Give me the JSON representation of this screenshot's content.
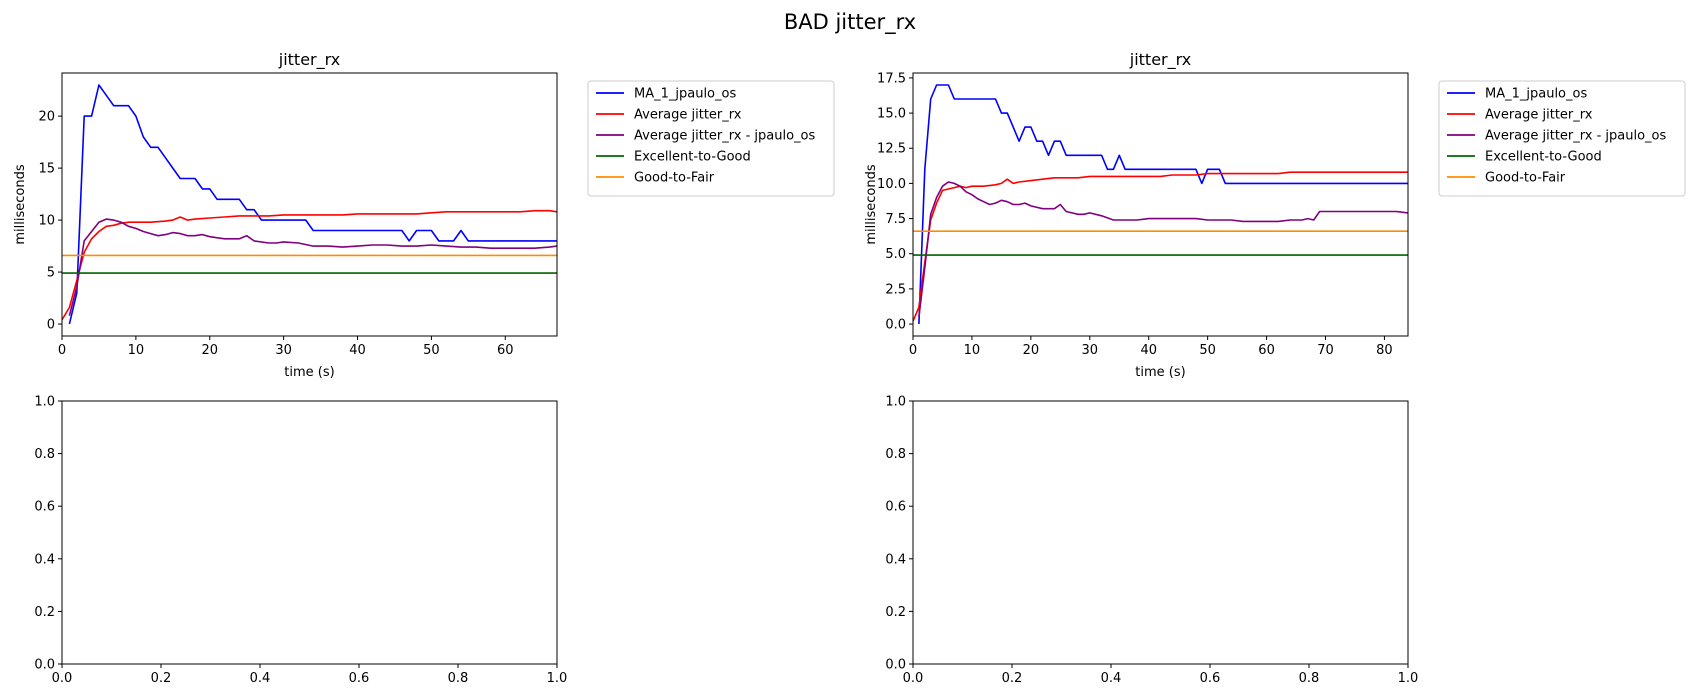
{
  "figure": {
    "suptitle": "BAD jitter_rx"
  },
  "chart_data": [
    {
      "type": "line",
      "title": "jitter_rx",
      "xlabel": "time (s)",
      "ylabel": "milliseconds",
      "xlim": [
        0,
        67
      ],
      "ylim": [
        -1.15,
        24.15
      ],
      "xticks": [
        0,
        10,
        20,
        30,
        40,
        50,
        60
      ],
      "yticks": [
        0,
        5,
        10,
        15,
        20
      ],
      "grid": false,
      "legend_position": "outside-right-top",
      "series": [
        {
          "name": "MA_1_jpaulo_os",
          "color": "#0000ff",
          "x": [
            1,
            2,
            3,
            4,
            5,
            6,
            7,
            8,
            9,
            10,
            11,
            12,
            13,
            14,
            15,
            16,
            17,
            18,
            19,
            20,
            21,
            22,
            23,
            24,
            25,
            26,
            27,
            28,
            29,
            30,
            31,
            32,
            33,
            34,
            35,
            36,
            37,
            38,
            39,
            40,
            41,
            42,
            43,
            44,
            45,
            46,
            47,
            48,
            49,
            50,
            51,
            52,
            53,
            54,
            55,
            56,
            57,
            58,
            59,
            60,
            61,
            62,
            63,
            64,
            65,
            66,
            67
          ],
          "y": [
            0,
            3,
            20,
            20,
            23,
            22,
            21,
            21,
            21,
            20,
            18,
            17,
            17,
            16,
            15,
            14,
            14,
            14,
            13,
            13,
            12,
            12,
            12,
            12,
            11,
            11,
            10,
            10,
            10,
            10,
            10,
            10,
            10,
            9,
            9,
            9,
            9,
            9,
            9,
            9,
            9,
            9,
            9,
            9,
            9,
            9,
            8,
            9,
            9,
            9,
            8,
            8,
            8,
            9,
            8,
            8,
            8,
            8,
            8,
            8,
            8,
            8,
            8,
            8,
            8,
            8,
            8
          ]
        },
        {
          "name": "Average jitter_rx",
          "color": "#ff0000",
          "x": [
            0,
            1,
            2,
            3,
            4,
            5,
            6,
            7,
            8,
            9,
            10,
            12,
            14,
            15,
            16,
            17,
            18,
            20,
            22,
            24,
            26,
            28,
            30,
            32,
            34,
            36,
            38,
            40,
            42,
            44,
            46,
            48,
            50,
            52,
            54,
            56,
            58,
            60,
            62,
            64,
            66,
            67
          ],
          "y": [
            0.4,
            1.6,
            4.2,
            6.9,
            8.2,
            8.9,
            9.4,
            9.5,
            9.7,
            9.8,
            9.8,
            9.8,
            9.9,
            10.0,
            10.3,
            10.0,
            10.1,
            10.2,
            10.3,
            10.4,
            10.4,
            10.4,
            10.5,
            10.5,
            10.5,
            10.5,
            10.5,
            10.6,
            10.6,
            10.6,
            10.6,
            10.6,
            10.7,
            10.8,
            10.8,
            10.8,
            10.8,
            10.8,
            10.8,
            10.9,
            10.9,
            10.8
          ]
        },
        {
          "name": "Average jitter_rx - jpaulo_os",
          "color": "#800080",
          "x": [
            1,
            2,
            3,
            4,
            5,
            6,
            7,
            8,
            9,
            10,
            11,
            12,
            13,
            14,
            15,
            16,
            17,
            18,
            19,
            20,
            22,
            24,
            25,
            26,
            28,
            29,
            30,
            32,
            34,
            36,
            38,
            40,
            42,
            44,
            46,
            48,
            50,
            52,
            54,
            56,
            58,
            60,
            62,
            64,
            66,
            67
          ],
          "y": [
            0.8,
            3.6,
            8.0,
            8.9,
            9.8,
            10.1,
            10.0,
            9.8,
            9.4,
            9.2,
            8.9,
            8.7,
            8.5,
            8.6,
            8.8,
            8.7,
            8.5,
            8.5,
            8.6,
            8.4,
            8.2,
            8.2,
            8.5,
            8.0,
            7.8,
            7.8,
            7.9,
            7.8,
            7.5,
            7.5,
            7.4,
            7.5,
            7.6,
            7.6,
            7.5,
            7.5,
            7.6,
            7.5,
            7.4,
            7.4,
            7.3,
            7.3,
            7.3,
            7.3,
            7.4,
            7.5
          ]
        },
        {
          "name": "Excellent-to-Good",
          "color": "#006400",
          "x": [
            0,
            67
          ],
          "y": [
            4.9,
            4.9
          ]
        },
        {
          "name": "Good-to-Fair",
          "color": "#ff8c00",
          "x": [
            0,
            67
          ],
          "y": [
            6.6,
            6.6
          ]
        }
      ]
    },
    {
      "type": "line",
      "title": "jitter_rx",
      "xlabel": "time (s)",
      "ylabel": "milliseconds",
      "xlim": [
        0,
        84
      ],
      "ylim": [
        -0.85,
        17.85
      ],
      "xticks": [
        0,
        10,
        20,
        30,
        40,
        50,
        60,
        70,
        80
      ],
      "yticks": [
        0.0,
        2.5,
        5.0,
        7.5,
        10.0,
        12.5,
        15.0,
        17.5
      ],
      "ytick_labels": [
        "0.0",
        "2.5",
        "5.0",
        "7.5",
        "10.0",
        "12.5",
        "15.0",
        "17.5"
      ],
      "grid": false,
      "legend_position": "outside-right-top",
      "series": [
        {
          "name": "MA_1_jpaulo_os",
          "color": "#0000ff",
          "x": [
            1,
            2,
            3,
            4,
            5,
            6,
            7,
            8,
            9,
            10,
            11,
            12,
            13,
            14,
            15,
            16,
            17,
            18,
            19,
            20,
            21,
            22,
            23,
            24,
            25,
            26,
            27,
            28,
            29,
            30,
            31,
            32,
            33,
            34,
            35,
            36,
            37,
            38,
            39,
            40,
            41,
            42,
            43,
            44,
            45,
            46,
            47,
            48,
            49,
            50,
            51,
            52,
            53,
            54,
            55,
            56,
            57,
            58,
            59,
            60,
            61,
            62,
            63,
            64,
            65,
            66,
            67,
            68,
            69,
            70,
            71,
            72,
            73,
            74,
            75,
            76,
            77,
            78,
            79,
            80,
            81,
            82,
            83,
            84
          ],
          "y": [
            0,
            11,
            16,
            17,
            17,
            17,
            16,
            16,
            16,
            16,
            16,
            16,
            16,
            16,
            15,
            15,
            14,
            13,
            14,
            14,
            13,
            13,
            12,
            13,
            13,
            12,
            12,
            12,
            12,
            12,
            12,
            12,
            11,
            11,
            12,
            11,
            11,
            11,
            11,
            11,
            11,
            11,
            11,
            11,
            11,
            11,
            11,
            11,
            10,
            11,
            11,
            11,
            10,
            10,
            10,
            10,
            10,
            10,
            10,
            10,
            10,
            10,
            10,
            10,
            10,
            10,
            10,
            10,
            10,
            10,
            10,
            10,
            10,
            10,
            10,
            10,
            10,
            10,
            10,
            10,
            10,
            10,
            10,
            10
          ]
        },
        {
          "name": "Average jitter_rx",
          "color": "#ff0000",
          "x": [
            0,
            1,
            2,
            3,
            4,
            5,
            6,
            7,
            8,
            9,
            10,
            12,
            14,
            15,
            16,
            17,
            18,
            20,
            22,
            24,
            26,
            28,
            30,
            32,
            34,
            36,
            38,
            40,
            42,
            44,
            46,
            48,
            50,
            52,
            54,
            56,
            58,
            60,
            62,
            64,
            66,
            68,
            70,
            72,
            74,
            76,
            78,
            80,
            82,
            84
          ],
          "y": [
            0.2,
            1.2,
            4.4,
            7.4,
            8.6,
            9.5,
            9.6,
            9.7,
            9.8,
            9.7,
            9.8,
            9.8,
            9.9,
            10.0,
            10.3,
            10.0,
            10.1,
            10.2,
            10.3,
            10.4,
            10.4,
            10.4,
            10.5,
            10.5,
            10.5,
            10.5,
            10.5,
            10.5,
            10.5,
            10.6,
            10.6,
            10.6,
            10.7,
            10.7,
            10.7,
            10.7,
            10.7,
            10.7,
            10.7,
            10.8,
            10.8,
            10.8,
            10.8,
            10.8,
            10.8,
            10.8,
            10.8,
            10.8,
            10.8,
            10.8
          ]
        },
        {
          "name": "Average jitter_rx - jpaulo_os",
          "color": "#800080",
          "x": [
            1,
            2,
            3,
            4,
            5,
            6,
            7,
            8,
            9,
            10,
            11,
            12,
            13,
            14,
            15,
            16,
            17,
            18,
            19,
            20,
            22,
            24,
            25,
            26,
            28,
            29,
            30,
            32,
            34,
            36,
            38,
            40,
            42,
            44,
            46,
            48,
            50,
            52,
            54,
            56,
            58,
            60,
            62,
            64,
            66,
            67,
            68,
            69,
            70,
            72,
            74,
            76,
            78,
            80,
            82,
            84
          ],
          "y": [
            0.5,
            4.0,
            7.8,
            9.0,
            9.8,
            10.1,
            10.0,
            9.8,
            9.4,
            9.2,
            8.9,
            8.7,
            8.5,
            8.6,
            8.8,
            8.7,
            8.5,
            8.5,
            8.6,
            8.4,
            8.2,
            8.2,
            8.5,
            8.0,
            7.8,
            7.8,
            7.9,
            7.7,
            7.4,
            7.4,
            7.4,
            7.5,
            7.5,
            7.5,
            7.5,
            7.5,
            7.4,
            7.4,
            7.4,
            7.3,
            7.3,
            7.3,
            7.3,
            7.4,
            7.4,
            7.5,
            7.4,
            8.0,
            8.0,
            8.0,
            8.0,
            8.0,
            8.0,
            8.0,
            8.0,
            7.9
          ]
        },
        {
          "name": "Excellent-to-Good",
          "color": "#006400",
          "x": [
            0,
            84
          ],
          "y": [
            4.9,
            4.9
          ]
        },
        {
          "name": "Good-to-Fair",
          "color": "#ff8c00",
          "x": [
            0,
            84
          ],
          "y": [
            6.6,
            6.6
          ]
        }
      ]
    },
    {
      "type": "line",
      "title": "",
      "xlabel": "",
      "ylabel": "",
      "xlim": [
        0,
        1
      ],
      "ylim": [
        0,
        1
      ],
      "xticks": [
        0,
        0.2,
        0.4,
        0.6,
        0.8,
        1.0
      ],
      "xtick_labels": [
        "0.0",
        "0.2",
        "0.4",
        "0.6",
        "0.8",
        "1.0"
      ],
      "yticks": [
        0,
        0.2,
        0.4,
        0.6,
        0.8,
        1.0
      ],
      "ytick_labels": [
        "0.0",
        "0.2",
        "0.4",
        "0.6",
        "0.8",
        "1.0"
      ],
      "grid": false,
      "series": []
    },
    {
      "type": "line",
      "title": "",
      "xlabel": "",
      "ylabel": "",
      "xlim": [
        0,
        1
      ],
      "ylim": [
        0,
        1
      ],
      "xticks": [
        0,
        0.2,
        0.4,
        0.6,
        0.8,
        1.0
      ],
      "xtick_labels": [
        "0.0",
        "0.2",
        "0.4",
        "0.6",
        "0.8",
        "1.0"
      ],
      "yticks": [
        0,
        0.2,
        0.4,
        0.6,
        0.8,
        1.0
      ],
      "ytick_labels": [
        "0.0",
        "0.2",
        "0.4",
        "0.6",
        "0.8",
        "1.0"
      ],
      "grid": false,
      "series": []
    }
  ]
}
